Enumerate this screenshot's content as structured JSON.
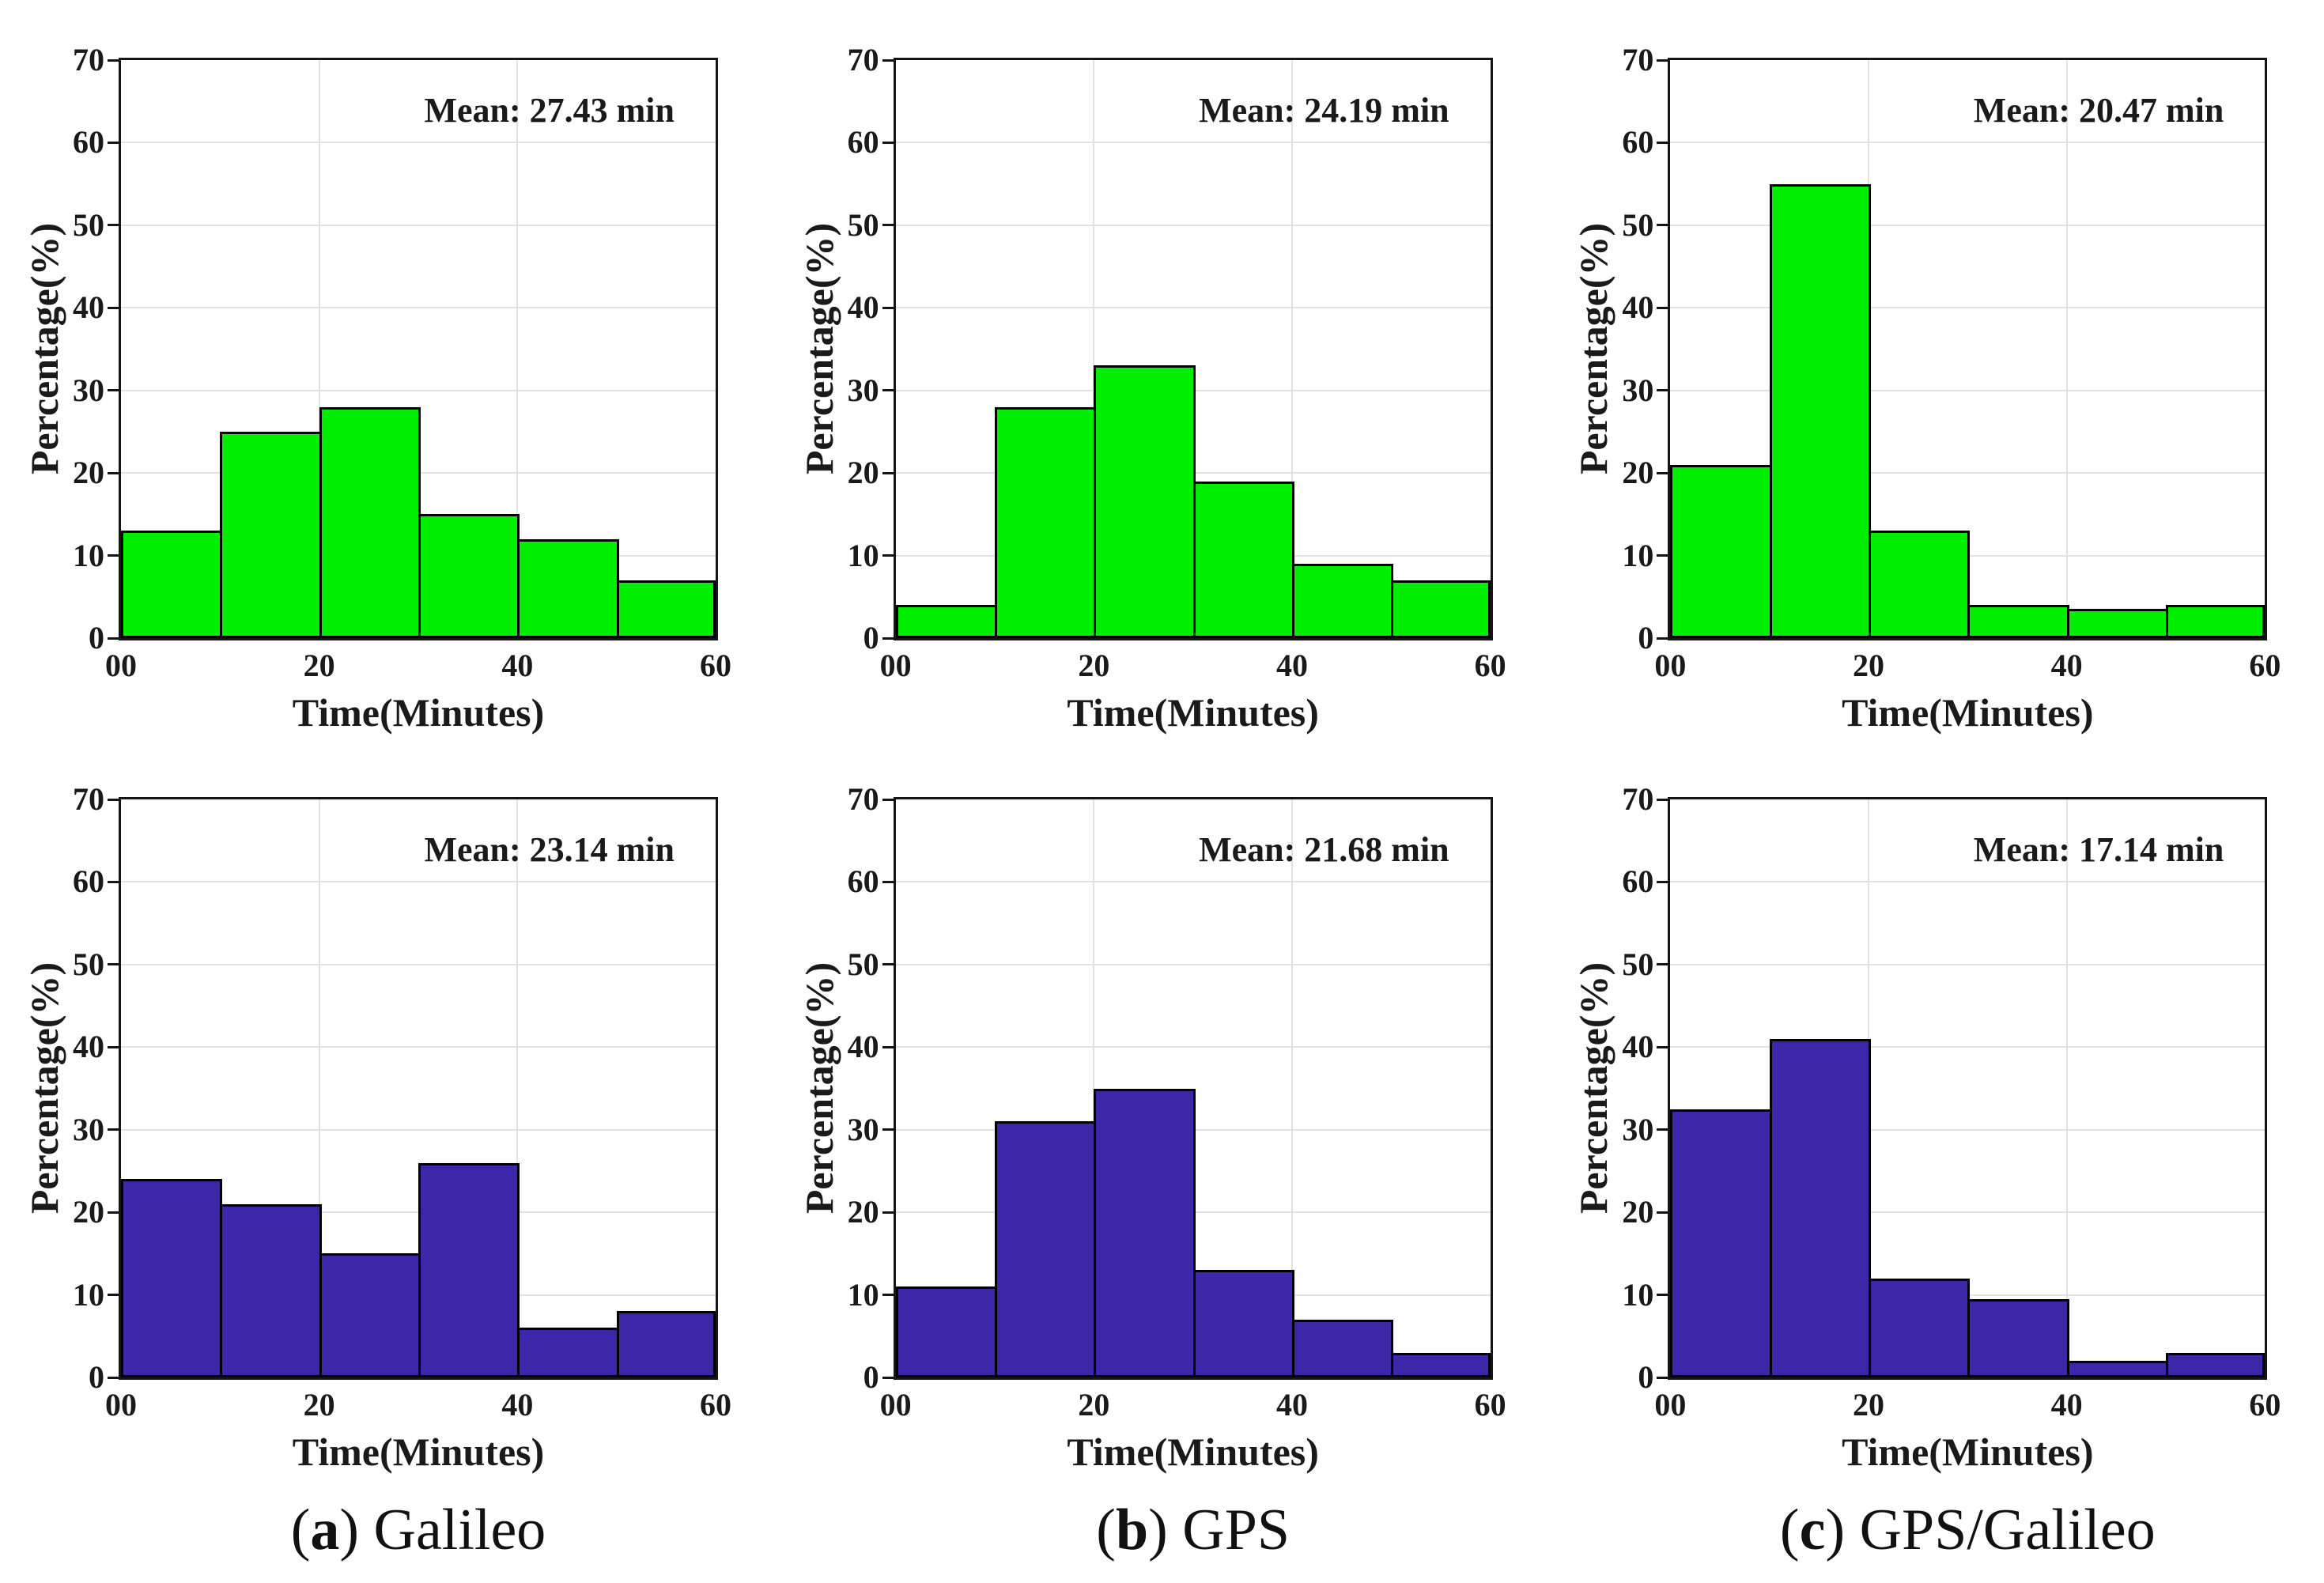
{
  "figure": {
    "background": "#FFFFFF",
    "ylabel": "Percentage(%)",
    "xlabel": "Time(Minutes)",
    "y_ticks": [
      "0",
      "10",
      "20",
      "30",
      "40",
      "50",
      "60",
      "70"
    ],
    "x_ticks": [
      "00",
      "20",
      "40",
      "60"
    ],
    "paren_open": "(",
    "paren_close": ")",
    "colors": {
      "top_row_fill": "#00EE00",
      "bottom_row_fill": "#3E26A8",
      "bar_edge": "#000000",
      "grid": "#E2E2E2",
      "axis": "#151515",
      "text": "#1A1A1A"
    }
  },
  "captions": [
    {
      "letter": "a",
      "label": "Galileo"
    },
    {
      "letter": "b",
      "label": "GPS"
    },
    {
      "letter": "c",
      "label": "GPS/Galileo"
    }
  ],
  "chart_data": [
    {
      "type": "bar",
      "position": "top-left",
      "system": "Galileo",
      "mean_label": "Mean: 27.43 min",
      "mean_minutes": 27.43,
      "fill": "#00EE00",
      "bin_edges_minutes": [
        0,
        10,
        20,
        30,
        40,
        50,
        60
      ],
      "values_percent": [
        13,
        25,
        28,
        15,
        12,
        7
      ],
      "xlabel": "Time(Minutes)",
      "ylabel": "Percentage(%)",
      "xlim": [
        0,
        60
      ],
      "ylim": [
        0,
        70
      ],
      "grid": true
    },
    {
      "type": "bar",
      "position": "top-middle",
      "system": "GPS",
      "mean_label": "Mean: 24.19 min",
      "mean_minutes": 24.19,
      "fill": "#00EE00",
      "bin_edges_minutes": [
        0,
        10,
        20,
        30,
        40,
        50,
        60
      ],
      "values_percent": [
        4,
        28,
        33,
        19,
        9,
        7
      ],
      "xlabel": "Time(Minutes)",
      "ylabel": "Percentage(%)",
      "xlim": [
        0,
        60
      ],
      "ylim": [
        0,
        70
      ],
      "grid": true
    },
    {
      "type": "bar",
      "position": "top-right",
      "system": "GPS/Galileo",
      "mean_label": "Mean: 20.47 min",
      "mean_minutes": 20.47,
      "fill": "#00EE00",
      "bin_edges_minutes": [
        0,
        10,
        20,
        30,
        40,
        50,
        60
      ],
      "values_percent": [
        21,
        55,
        13,
        4,
        3.5,
        4
      ],
      "xlabel": "Time(Minutes)",
      "ylabel": "Percentage(%)",
      "xlim": [
        0,
        60
      ],
      "ylim": [
        0,
        70
      ],
      "grid": true
    },
    {
      "type": "bar",
      "position": "bottom-left",
      "system": "Galileo",
      "mean_label": "Mean: 23.14 min",
      "mean_minutes": 23.14,
      "fill": "#3E26A8",
      "bin_edges_minutes": [
        0,
        10,
        20,
        30,
        40,
        50,
        60
      ],
      "values_percent": [
        24,
        21,
        15,
        26,
        6,
        8
      ],
      "xlabel": "Time(Minutes)",
      "ylabel": "Percentage(%)",
      "xlim": [
        0,
        60
      ],
      "ylim": [
        0,
        70
      ],
      "grid": true
    },
    {
      "type": "bar",
      "position": "bottom-middle",
      "system": "GPS",
      "mean_label": "Mean: 21.68 min",
      "mean_minutes": 21.68,
      "fill": "#3E26A8",
      "bin_edges_minutes": [
        0,
        10,
        20,
        30,
        40,
        50,
        60
      ],
      "values_percent": [
        11,
        31,
        35,
        13,
        7,
        3
      ],
      "xlabel": "Time(Minutes)",
      "ylabel": "Percentage(%)",
      "xlim": [
        0,
        60
      ],
      "ylim": [
        0,
        70
      ],
      "grid": true
    },
    {
      "type": "bar",
      "position": "bottom-right",
      "system": "GPS/Galileo",
      "mean_label": "Mean: 17.14 min",
      "mean_minutes": 17.14,
      "fill": "#3E26A8",
      "bin_edges_minutes": [
        0,
        10,
        20,
        30,
        40,
        50,
        60
      ],
      "values_percent": [
        32.5,
        41,
        12,
        9.5,
        2,
        3
      ],
      "xlabel": "Time(Minutes)",
      "ylabel": "Percentage(%)",
      "xlim": [
        0,
        60
      ],
      "ylim": [
        0,
        70
      ],
      "grid": true
    }
  ]
}
